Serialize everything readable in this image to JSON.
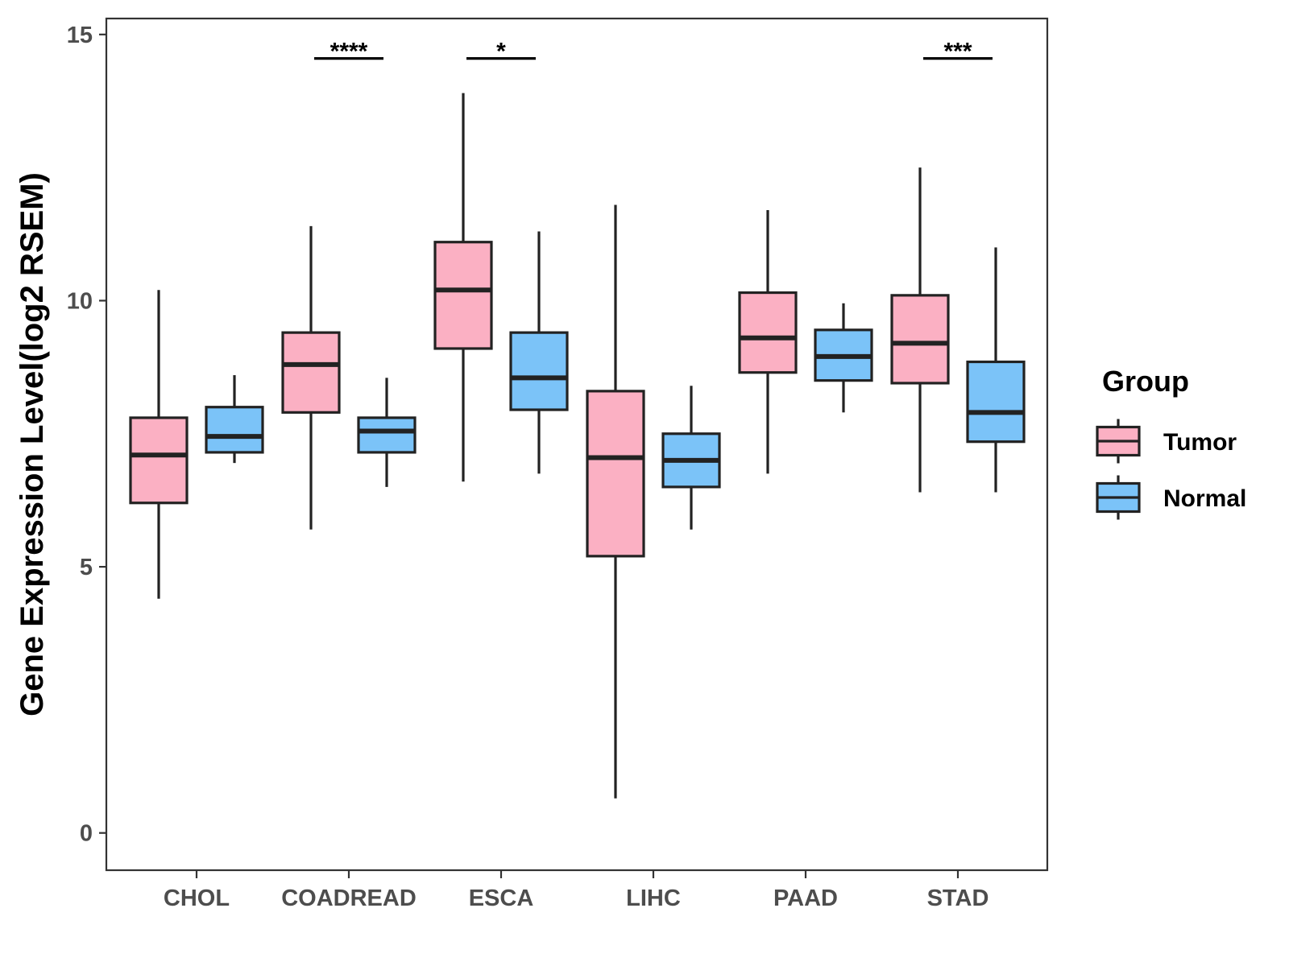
{
  "chart_data": {
    "type": "boxplot",
    "title": "",
    "xlabel": "",
    "ylabel": "Gene Expression Level(log2 RSEM)",
    "ylim": [
      -0.7,
      15.3
    ],
    "yticks": [
      0,
      5,
      10,
      15
    ],
    "categories": [
      "CHOL",
      "COADREAD",
      "ESCA",
      "LIHC",
      "PAAD",
      "STAD"
    ],
    "legend": {
      "title": "Group",
      "position": "right",
      "entries": [
        {
          "name": "Tumor",
          "color": "#fbb0c3"
        },
        {
          "name": "Normal",
          "color": "#7bc3f8"
        }
      ]
    },
    "series": [
      {
        "name": "Tumor",
        "color": "#fbb0c3",
        "boxes": [
          {
            "category": "CHOL",
            "whisker_low": 4.4,
            "q1": 6.2,
            "median": 7.1,
            "q3": 7.8,
            "whisker_high": 10.2
          },
          {
            "category": "COADREAD",
            "whisker_low": 5.7,
            "q1": 7.9,
            "median": 8.8,
            "q3": 9.4,
            "whisker_high": 11.4
          },
          {
            "category": "ESCA",
            "whisker_low": 6.6,
            "q1": 9.1,
            "median": 10.2,
            "q3": 11.1,
            "whisker_high": 13.9
          },
          {
            "category": "LIHC",
            "whisker_low": 0.65,
            "q1": 5.2,
            "median": 7.05,
            "q3": 8.3,
            "whisker_high": 11.8
          },
          {
            "category": "PAAD",
            "whisker_low": 6.75,
            "q1": 8.65,
            "median": 9.3,
            "q3": 10.15,
            "whisker_high": 11.7
          },
          {
            "category": "STAD",
            "whisker_low": 6.4,
            "q1": 8.45,
            "median": 9.2,
            "q3": 10.1,
            "whisker_high": 12.5
          }
        ]
      },
      {
        "name": "Normal",
        "color": "#7bc3f8",
        "boxes": [
          {
            "category": "CHOL",
            "whisker_low": 6.95,
            "q1": 7.15,
            "median": 7.45,
            "q3": 8.0,
            "whisker_high": 8.6
          },
          {
            "category": "COADREAD",
            "whisker_low": 6.5,
            "q1": 7.15,
            "median": 7.55,
            "q3": 7.8,
            "whisker_high": 8.55
          },
          {
            "category": "ESCA",
            "whisker_low": 6.75,
            "q1": 7.95,
            "median": 8.55,
            "q3": 9.4,
            "whisker_high": 11.3
          },
          {
            "category": "LIHC",
            "whisker_low": 5.7,
            "q1": 6.5,
            "median": 7.0,
            "q3": 7.5,
            "whisker_high": 8.4
          },
          {
            "category": "PAAD",
            "whisker_low": 7.9,
            "q1": 8.5,
            "median": 8.95,
            "q3": 9.45,
            "whisker_high": 9.95
          },
          {
            "category": "STAD",
            "whisker_low": 6.4,
            "q1": 7.35,
            "median": 7.9,
            "q3": 8.85,
            "whisker_high": 11.0
          }
        ]
      }
    ],
    "significance": [
      {
        "category": "COADREAD",
        "label": "****",
        "y": 14.55
      },
      {
        "category": "ESCA",
        "label": "*",
        "y": 14.55
      },
      {
        "category": "STAD",
        "label": "***",
        "y": 14.55
      }
    ],
    "grid": false,
    "colors": {
      "outline": "#222222",
      "axis": "#333333",
      "tick_text": "#4d4d4d"
    }
  }
}
